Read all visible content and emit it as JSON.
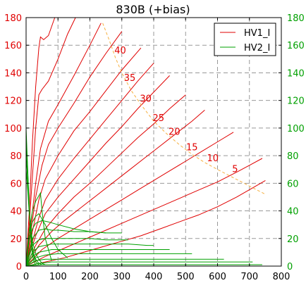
{
  "chart_data": {
    "type": "line",
    "title": "830B (+bias)",
    "xlim": [
      0,
      800
    ],
    "ylim_left": [
      0,
      180
    ],
    "ylim_right": [
      0,
      180
    ],
    "x_ticks": [
      0,
      100,
      200,
      300,
      400,
      500,
      600,
      700,
      800
    ],
    "y_ticks": [
      0,
      20,
      40,
      60,
      80,
      100,
      120,
      140,
      160,
      180
    ],
    "grid": true,
    "legend_position": "top-right",
    "colors": {
      "hv1": "#e00000",
      "hv2": "#00a000",
      "power": "#f5b041",
      "right_axis": "#00a000",
      "grid": "#999999"
    },
    "legend": [
      {
        "label": "HV1_I",
        "color": "#e00000"
      },
      {
        "label": "HV2_I",
        "color": "#00a000"
      }
    ],
    "curve_labels": [
      {
        "text": "40",
        "x": 295,
        "y": 154
      },
      {
        "text": "35",
        "x": 325,
        "y": 134
      },
      {
        "text": "30",
        "x": 375,
        "y": 119
      },
      {
        "text": "25",
        "x": 415,
        "y": 105
      },
      {
        "text": "20",
        "x": 465,
        "y": 95
      },
      {
        "text": "15",
        "x": 520,
        "y": 84
      },
      {
        "text": "10",
        "x": 585,
        "y": 76
      },
      {
        "text": "5",
        "x": 655,
        "y": 68
      }
    ],
    "power_curve": {
      "x": [
        240,
        260,
        280,
        300,
        330,
        360,
        400,
        440,
        480,
        520,
        560,
        600,
        650,
        700,
        750
      ],
      "y": [
        176,
        164,
        151,
        140,
        127,
        117,
        105,
        96,
        88,
        81,
        75,
        70,
        64,
        58,
        52
      ]
    },
    "series": [
      {
        "group": "hv1",
        "x": [
          0,
          10,
          20,
          30,
          40,
          45,
          55,
          70,
          90
        ],
        "y": [
          0,
          40,
          90,
          130,
          158,
          166,
          164,
          167,
          180
        ]
      },
      {
        "group": "hv1",
        "x": [
          0,
          10,
          20,
          30,
          40,
          50,
          70,
          100,
          130,
          155
        ],
        "y": [
          0,
          30,
          65,
          100,
          124,
          128,
          134,
          150,
          168,
          180
        ]
      },
      {
        "group": "hv1",
        "x": [
          0,
          15,
          30,
          45,
          70,
          100,
          150,
          200,
          235
        ],
        "y": [
          0,
          30,
          60,
          85,
          105,
          117,
          138,
          160,
          176
        ]
      },
      {
        "group": "hv1",
        "x": [
          0,
          15,
          30,
          50,
          70,
          100,
          150,
          200,
          250,
          300
        ],
        "y": [
          0,
          25,
          50,
          73,
          88,
          100,
          118,
          137,
          154,
          170
        ]
      },
      {
        "group": "hv1",
        "x": [
          0,
          20,
          40,
          60,
          100,
          150,
          200,
          250,
          300,
          360
        ],
        "y": [
          0,
          25,
          48,
          63,
          80,
          98,
          112,
          127,
          142,
          158
        ]
      },
      {
        "group": "hv1",
        "x": [
          0,
          20,
          40,
          60,
          100,
          150,
          200,
          250,
          300,
          350,
          400
        ],
        "y": [
          0,
          18,
          35,
          48,
          63,
          78,
          92,
          106,
          120,
          134,
          147
        ]
      },
      {
        "group": "hv1",
        "x": [
          0,
          30,
          60,
          100,
          150,
          200,
          250,
          300,
          350,
          400,
          450
        ],
        "y": [
          0,
          22,
          38,
          50,
          63,
          76,
          89,
          101,
          114,
          126,
          138
        ]
      },
      {
        "group": "hv1",
        "x": [
          0,
          30,
          60,
          100,
          150,
          200,
          250,
          300,
          350,
          400,
          450,
          500
        ],
        "y": [
          0,
          15,
          27,
          38,
          50,
          60,
          71,
          82,
          93,
          103,
          114,
          124
        ]
      },
      {
        "group": "hv1",
        "x": [
          0,
          40,
          80,
          120,
          170,
          220,
          270,
          320,
          370,
          420,
          470,
          520,
          560
        ],
        "y": [
          0,
          15,
          25,
          33,
          42,
          51,
          60,
          69,
          78,
          87,
          96,
          105,
          113
        ]
      },
      {
        "group": "hv1",
        "x": [
          0,
          50,
          100,
          150,
          200,
          250,
          300,
          350,
          400,
          450,
          500,
          550,
          600,
          650
        ],
        "y": [
          0,
          12,
          20,
          27,
          34,
          41,
          48,
          55,
          62,
          69,
          76,
          83,
          90,
          97
        ]
      },
      {
        "group": "hv1",
        "x": [
          0,
          60,
          120,
          180,
          240,
          300,
          360,
          420,
          480,
          540,
          600,
          660,
          700,
          740
        ],
        "y": [
          0,
          7,
          13,
          19,
          25,
          31,
          37,
          43,
          49,
          55,
          61,
          68,
          73,
          78
        ]
      },
      {
        "group": "hv1",
        "x": [
          0,
          60,
          120,
          180,
          240,
          300,
          360,
          420,
          480,
          540,
          600,
          660,
          720,
          750
        ],
        "y": [
          0,
          3,
          6,
          10,
          14,
          18,
          22,
          27,
          32,
          37,
          43,
          50,
          58,
          62
        ]
      },
      {
        "group": "hv2",
        "x": [
          0,
          5,
          10,
          15,
          20,
          25,
          30
        ],
        "y": [
          100,
          70,
          40,
          20,
          8,
          3,
          1
        ]
      },
      {
        "group": "hv2",
        "x": [
          0,
          5,
          10,
          15,
          20,
          30,
          40
        ],
        "y": [
          90,
          68,
          42,
          22,
          10,
          3,
          1
        ]
      },
      {
        "group": "hv2",
        "x": [
          0,
          5,
          10,
          15,
          20,
          25,
          30,
          40,
          50
        ],
        "y": [
          80,
          62,
          40,
          24,
          14,
          8,
          5,
          2,
          1
        ]
      },
      {
        "group": "hv2",
        "x": [
          0,
          5,
          10,
          20,
          30,
          40,
          50,
          60
        ],
        "y": [
          70,
          55,
          38,
          18,
          9,
          5,
          2,
          1
        ]
      },
      {
        "group": "hv2",
        "x": [
          0,
          10,
          20,
          30,
          40,
          45,
          50,
          60,
          80
        ],
        "y": [
          0,
          26,
          40,
          47,
          51,
          53,
          40,
          20,
          4
        ]
      },
      {
        "group": "hv2",
        "x": [
          0,
          10,
          20,
          30,
          40,
          60,
          80,
          100,
          130
        ],
        "y": [
          0,
          25,
          32,
          36,
          38,
          30,
          20,
          12,
          6
        ]
      },
      {
        "group": "hv2",
        "x": [
          0,
          10,
          20,
          30,
          50,
          70,
          100,
          150,
          200,
          250
        ],
        "y": [
          0,
          20,
          27,
          31,
          33,
          32,
          30,
          27,
          25,
          24
        ]
      },
      {
        "group": "hv2",
        "x": [
          0,
          20,
          40,
          60,
          80,
          100,
          150,
          200,
          250,
          300
        ],
        "y": [
          0,
          20,
          26,
          27,
          26,
          26,
          25,
          25,
          24,
          24
        ]
      },
      {
        "group": "hv2",
        "x": [
          0,
          20,
          40,
          60,
          100,
          150,
          200,
          250,
          300,
          320
        ],
        "y": [
          0,
          15,
          19,
          20,
          20,
          20,
          20,
          19,
          19,
          19
        ]
      },
      {
        "group": "hv2",
        "x": [
          0,
          20,
          40,
          80,
          120,
          160,
          200,
          260,
          320,
          380,
          400
        ],
        "y": [
          0,
          10,
          14,
          16,
          16,
          16,
          16,
          16,
          16,
          15,
          15
        ]
      },
      {
        "group": "hv2",
        "x": [
          0,
          20,
          40,
          80,
          120,
          180,
          240,
          300,
          360,
          420,
          450
        ],
        "y": [
          0,
          7,
          10,
          12,
          12,
          12,
          12,
          12,
          12,
          12,
          12
        ]
      },
      {
        "group": "hv2",
        "x": [
          0,
          30,
          60,
          100,
          150,
          200,
          300,
          400,
          480,
          520
        ],
        "y": [
          0,
          6,
          8,
          9,
          9,
          9,
          9,
          9,
          9,
          9
        ]
      },
      {
        "group": "hv2",
        "x": [
          0,
          30,
          60,
          100,
          200,
          300,
          400,
          500,
          580,
          620
        ],
        "y": [
          0,
          4,
          5,
          5,
          5,
          5,
          5,
          5,
          5,
          5
        ]
      },
      {
        "group": "hv2",
        "x": [
          0,
          40,
          80,
          150,
          250,
          350,
          450,
          550,
          650,
          710
        ],
        "y": [
          0,
          2,
          3,
          3,
          3,
          3,
          3,
          3,
          3,
          3
        ]
      },
      {
        "group": "hv2",
        "x": [
          0,
          50,
          100,
          200,
          300,
          400,
          500,
          600,
          700,
          740
        ],
        "y": [
          0,
          1,
          1,
          1,
          1,
          1,
          1,
          1,
          1,
          1
        ]
      }
    ]
  }
}
